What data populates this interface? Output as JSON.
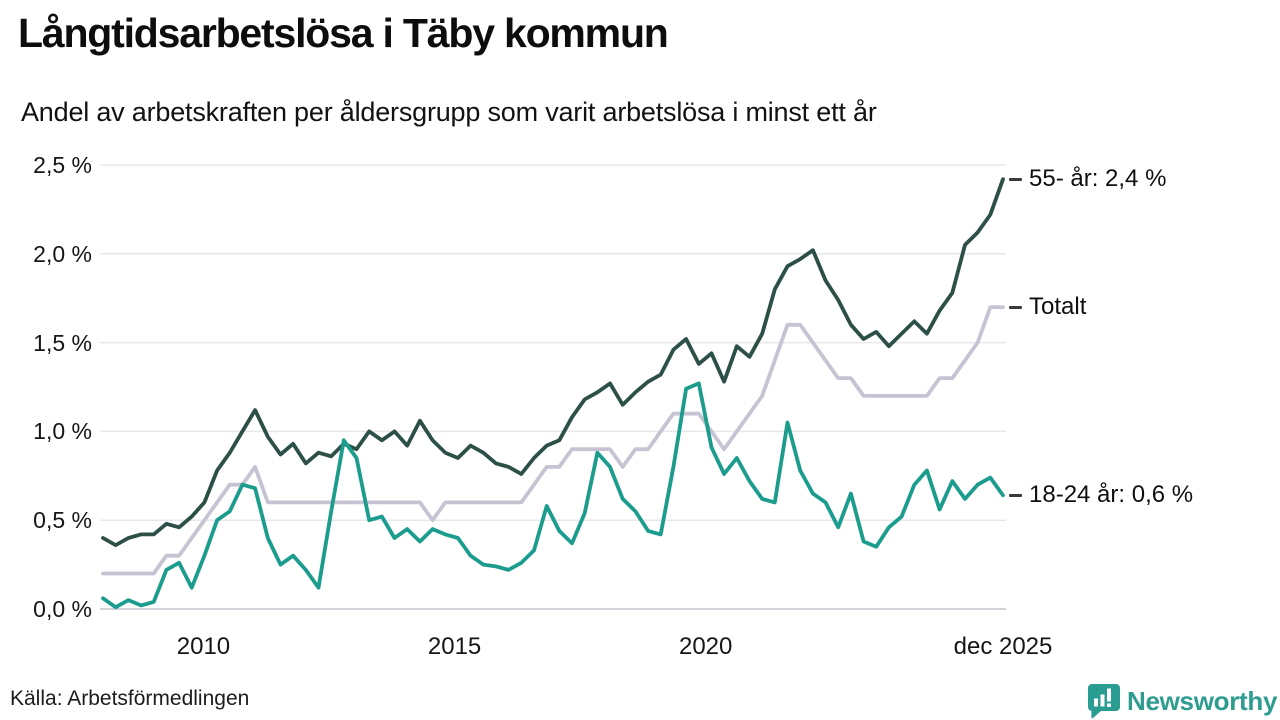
{
  "header": {
    "title": "Långtidsarbetslösa i Täby kommun",
    "subtitle": "Andel av arbetskraften per åldersgrupp som varit arbetslösa i minst ett år"
  },
  "footer": {
    "source": "Källa: Arbetsförmedlingen",
    "brand": "Newsworthy"
  },
  "colors": {
    "grid": "#e8e8ec",
    "zero_line": "#d2d2d8",
    "text": "#161616",
    "label_dash": "#3a3a3a",
    "brand": "#2f9c90",
    "series_55": "#2c4f47",
    "series_total": "#c6c3d2",
    "series_1824": "#1b9c8d"
  },
  "chart_data": {
    "type": "line",
    "title": "Långtidsarbetslösa i Täby kommun",
    "subtitle": "Andel av arbetskraften per åldersgrupp som varit arbetslösa i minst ett år",
    "x_start_year": 2008,
    "x_end_year": 2025.92,
    "points_per_year": 4,
    "ylim": [
      0,
      2.5
    ],
    "grid": true,
    "legend_position": "right-end-labels",
    "y_ticks": [
      {
        "value": 2.5,
        "label": "2,5 %"
      },
      {
        "value": 2.0,
        "label": "2,0 %"
      },
      {
        "value": 1.5,
        "label": "1,5 %"
      },
      {
        "value": 1.0,
        "label": "1,0 %"
      },
      {
        "value": 0.5,
        "label": "0,5 %"
      },
      {
        "value": 0.0,
        "label": "0,0 %"
      }
    ],
    "x_ticks": [
      {
        "year": 2010,
        "label": "2010"
      },
      {
        "year": 2015,
        "label": "2015"
      },
      {
        "year": 2020,
        "label": "2020"
      },
      {
        "year": 2025.92,
        "label": "dec 2025"
      }
    ],
    "series": [
      {
        "id": "total",
        "name": "Totalt",
        "end_label": "Totalt",
        "end_value": 1.7,
        "color": "#c6c3d2",
        "values": [
          0.2,
          0.2,
          0.2,
          0.2,
          0.2,
          0.3,
          0.3,
          0.4,
          0.5,
          0.6,
          0.7,
          0.7,
          0.8,
          0.6,
          0.6,
          0.6,
          0.6,
          0.6,
          0.6,
          0.6,
          0.6,
          0.6,
          0.6,
          0.6,
          0.6,
          0.6,
          0.5,
          0.6,
          0.6,
          0.6,
          0.6,
          0.6,
          0.6,
          0.6,
          0.7,
          0.8,
          0.8,
          0.9,
          0.9,
          0.9,
          0.9,
          0.8,
          0.9,
          0.9,
          1.0,
          1.1,
          1.1,
          1.1,
          1.0,
          0.9,
          1.0,
          1.1,
          1.2,
          1.4,
          1.6,
          1.6,
          1.5,
          1.4,
          1.3,
          1.3,
          1.2,
          1.2,
          1.2,
          1.2,
          1.2,
          1.2,
          1.3,
          1.3,
          1.4,
          1.5,
          1.7,
          1.7
        ]
      },
      {
        "id": "age55",
        "name": "55- år",
        "end_label": "55- år: 2,4 %",
        "end_value": 2.4,
        "color": "#2c4f47",
        "values": [
          0.4,
          0.36,
          0.4,
          0.42,
          0.42,
          0.48,
          0.46,
          0.52,
          0.6,
          0.78,
          0.88,
          1.0,
          1.12,
          0.97,
          0.87,
          0.93,
          0.82,
          0.88,
          0.86,
          0.93,
          0.9,
          1.0,
          0.95,
          1.0,
          0.92,
          1.06,
          0.95,
          0.88,
          0.85,
          0.92,
          0.88,
          0.82,
          0.8,
          0.76,
          0.85,
          0.92,
          0.95,
          1.08,
          1.18,
          1.22,
          1.27,
          1.15,
          1.22,
          1.28,
          1.32,
          1.46,
          1.52,
          1.38,
          1.44,
          1.28,
          1.48,
          1.42,
          1.55,
          1.8,
          1.93,
          1.97,
          2.02,
          1.85,
          1.74,
          1.6,
          1.52,
          1.56,
          1.48,
          1.55,
          1.62,
          1.55,
          1.68,
          1.78,
          2.05,
          2.12,
          2.22,
          2.42
        ]
      },
      {
        "id": "age1824",
        "name": "18-24 år",
        "end_label": "18-24 år: 0,6 %",
        "end_value": 0.6,
        "color": "#1b9c8d",
        "values": [
          0.06,
          0.01,
          0.05,
          0.02,
          0.04,
          0.22,
          0.26,
          0.12,
          0.3,
          0.5,
          0.55,
          0.7,
          0.68,
          0.4,
          0.25,
          0.3,
          0.22,
          0.12,
          0.55,
          0.95,
          0.85,
          0.5,
          0.52,
          0.4,
          0.45,
          0.38,
          0.45,
          0.42,
          0.4,
          0.3,
          0.25,
          0.24,
          0.22,
          0.26,
          0.33,
          0.58,
          0.44,
          0.37,
          0.54,
          0.88,
          0.8,
          0.62,
          0.55,
          0.44,
          0.42,
          0.8,
          1.24,
          1.27,
          0.91,
          0.76,
          0.85,
          0.72,
          0.62,
          0.6,
          1.05,
          0.78,
          0.65,
          0.6,
          0.46,
          0.65,
          0.38,
          0.35,
          0.46,
          0.52,
          0.7,
          0.78,
          0.56,
          0.72,
          0.62,
          0.7,
          0.74,
          0.64
        ]
      }
    ]
  }
}
